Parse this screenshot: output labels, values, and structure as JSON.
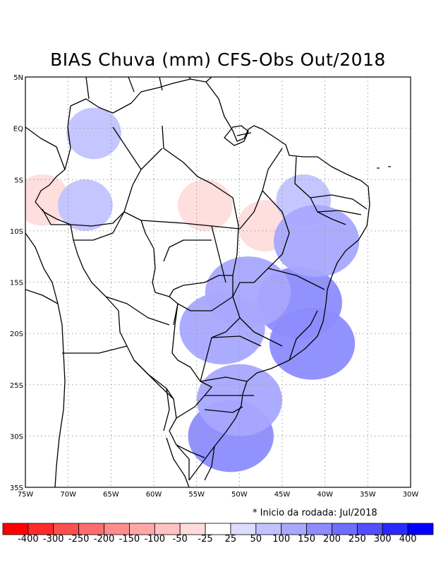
{
  "title": "BIAS Chuva (mm) CFS-Obs Out/2018",
  "note": "* Inicio da rodada: Jul/2018",
  "axes": {
    "lat_labels": [
      "5N",
      "EQ",
      "5S",
      "10S",
      "15S",
      "20S",
      "25S",
      "30S",
      "35S"
    ],
    "lon_labels": [
      "75W",
      "70W",
      "65W",
      "60W",
      "55W",
      "50W",
      "45W",
      "40W",
      "35W",
      "30W"
    ],
    "lon_range": [
      -75,
      -30
    ],
    "lat_range": [
      -35,
      5
    ],
    "grid": "dotted"
  },
  "colorbar": {
    "labels": [
      "-400",
      "-300",
      "-250",
      "-200",
      "-150",
      "-100",
      "-50",
      "-25",
      "25",
      "50",
      "100",
      "150",
      "200",
      "250",
      "300",
      "400"
    ],
    "colors": [
      "#ff0000",
      "#ff2a2a",
      "#ff5050",
      "#ff6e6e",
      "#ff8c8c",
      "#ffa8a8",
      "#ffc2c2",
      "#ffdcdc",
      "#ffffff",
      "#dcdcff",
      "#c2c2ff",
      "#a8a8ff",
      "#8c8cff",
      "#6e6eff",
      "#5050ff",
      "#2a2aff",
      "#0000ff"
    ]
  },
  "chart_data": {
    "type": "heatmap",
    "title": "BIAS Chuva (mm) CFS-Obs Out/2018",
    "units": "mm",
    "xlabel": "",
    "ylabel": "",
    "xlim": [
      -75,
      -30
    ],
    "ylim": [
      -35,
      5
    ],
    "regions": [
      {
        "lon": -54,
        "lat": -7.5,
        "bias": -50
      },
      {
        "lon": -73,
        "lat": -7,
        "bias": -50
      },
      {
        "lon": -47,
        "lat": -9.5,
        "bias": -50
      },
      {
        "lon": -52.5,
        "lat": -22,
        "bias": -25
      },
      {
        "lon": -68,
        "lat": -7.5,
        "bias": 50
      },
      {
        "lon": -67,
        "lat": -0.5,
        "bias": 50
      },
      {
        "lon": -43,
        "lat": -17,
        "bias": 150
      },
      {
        "lon": -52,
        "lat": -19.5,
        "bias": 100
      },
      {
        "lon": -49,
        "lat": -16,
        "bias": 100
      },
      {
        "lon": -41.5,
        "lat": -21,
        "bias": 150
      },
      {
        "lon": -51,
        "lat": -30,
        "bias": 150
      },
      {
        "lon": -50,
        "lat": -26.5,
        "bias": 100
      },
      {
        "lon": -42.5,
        "lat": -7,
        "bias": 50
      },
      {
        "lon": -41,
        "lat": -11,
        "bias": 100
      }
    ]
  }
}
